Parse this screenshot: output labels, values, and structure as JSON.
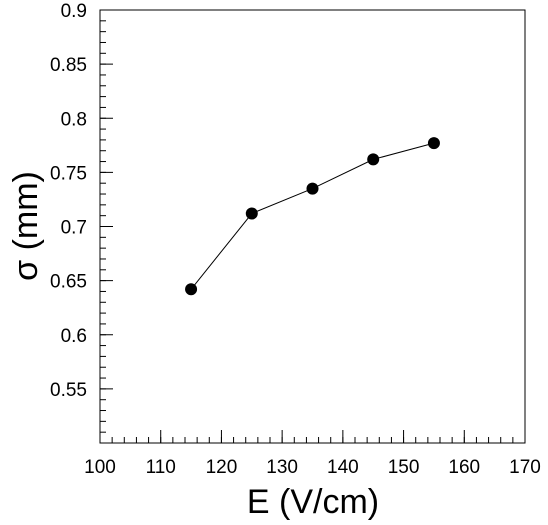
{
  "chart_data": {
    "type": "line",
    "title": "",
    "xlabel": "E (V/cm)",
    "ylabel": "σ (mm)",
    "xlim": [
      100,
      170
    ],
    "ylim": [
      0.5,
      0.9
    ],
    "x_ticks": [
      100,
      110,
      120,
      130,
      140,
      150,
      160,
      170
    ],
    "x_tick_labels": [
      "100",
      "110",
      "120",
      "130",
      "140",
      "150",
      "160",
      "170"
    ],
    "y_ticks": [
      0.55,
      0.6,
      0.65,
      0.7,
      0.75,
      0.8,
      0.85,
      0.9
    ],
    "y_tick_labels": [
      "0.55",
      "0.6",
      "0.65",
      "0.7",
      "0.75",
      "0.8",
      "0.85",
      "0.9"
    ],
    "grid": false,
    "legend": "none",
    "marker": "filled-circle",
    "series": [
      {
        "x": [
          115,
          125,
          135,
          145,
          155
        ],
        "y": [
          0.642,
          0.712,
          0.735,
          0.762,
          0.777
        ],
        "color": "#000000"
      }
    ]
  }
}
